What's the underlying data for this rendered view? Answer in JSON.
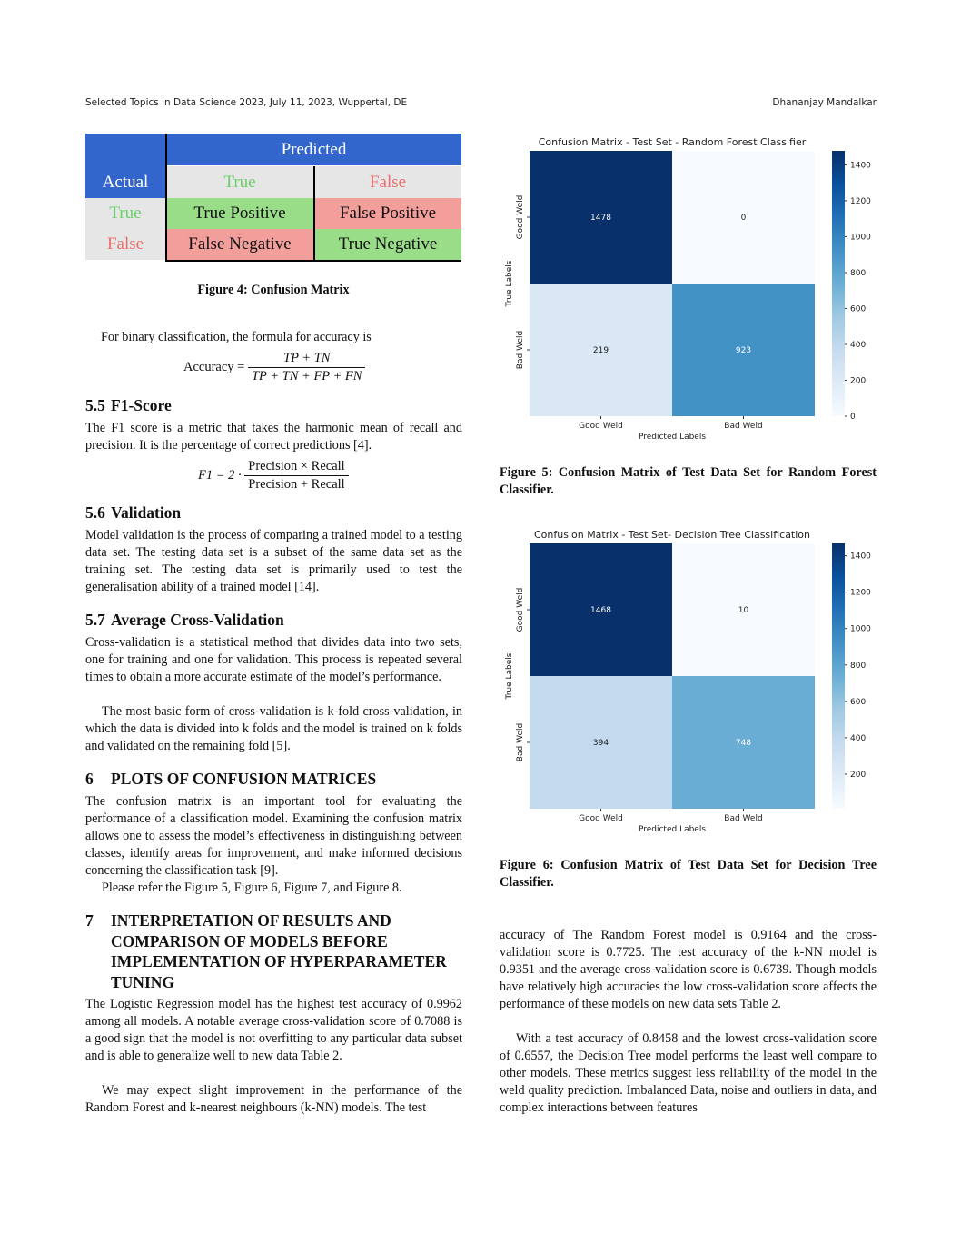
{
  "header": {
    "left": "Selected Topics in Data Science 2023, July 11, 2023, Wuppertal, DE",
    "right": "Dhananjay Mandalkar"
  },
  "confusion_table": {
    "predicted": "Predicted",
    "actual": "Actual",
    "true": "True",
    "false": "False",
    "tp": "True Positive",
    "fp": "False Positive",
    "fn": "False Negative",
    "tn": "True Negative",
    "caption": "Figure 4: Confusion Matrix"
  },
  "left": {
    "accuracy_intro": "For binary classification, the formula for accuracy is",
    "accuracy_lhs": "Accuracy =",
    "accuracy_num": "TP + TN",
    "accuracy_den": "TP + TN + FP + FN",
    "s55_num": "5.5",
    "s55_title": "F1-Score",
    "s55_text": "The F1 score is a metric that takes the harmonic mean of recall and precision. It is the percentage of correct predictions [4].",
    "f1_lhs": "F1 = 2 ·",
    "f1_num": "Precision × Recall",
    "f1_den": "Precision + Recall",
    "s56_num": "5.6",
    "s56_title": "Validation",
    "s56_text": "Model validation is the process of comparing a trained model to a testing data set. The testing data set is a subset of the same data set as the training set. The testing data set is primarily used to test the generalisation ability of a trained model [14].",
    "s57_num": "5.7",
    "s57_title": "Average Cross-Validation",
    "s57_text1": "Cross-validation is a statistical method that divides data into two sets, one for training and one for validation. This process is repeated several times to obtain a more accurate estimate of the model’s performance.",
    "s57_text2": "The most basic form of cross-validation is k-fold cross-validation, in which the data is divided into k folds and the model is trained on k folds and validated on the remaining fold [5].",
    "s6_num": "6",
    "s6_title": "PLOTS OF CONFUSION MATRICES",
    "s6_text1": "The confusion matrix is an important tool for evaluating the performance of a classification model. Examining the confusion matrix allows one to assess the model’s effectiveness in distinguishing between classes, identify areas for improvement, and make informed decisions concerning the classification task [9].",
    "s6_text2": "Please refer the Figure 5, Figure 6, Figure 7, and Figure 8.",
    "s7_num": "7",
    "s7_line1": "INTERPRETATION OF RESULTS AND",
    "s7_line2": "COMPARISON OF MODELS BEFORE",
    "s7_line3": "IMPLEMENTATION OF HYPERPARAMETER",
    "s7_line4": "TUNING",
    "s7_text1": "The Logistic Regression model has the highest test accuracy of 0.9962 among all models. A notable average cross-validation score of 0.7088 is a good sign that the model is not overfitting to any particular data subset and is able to generalize well to new data Table 2.",
    "s7_text2": "We may expect slight improvement in the performance of the Random Forest and k-nearest neighbours (k-NN) models. The test"
  },
  "right": {
    "fig5_caption": "Figure 5: Confusion Matrix of Test Data Set for Random Forest Classifier.",
    "fig6_caption": "Figure 6: Confusion Matrix of Test Data Set for Decision Tree Classifier.",
    "text1": "accuracy of The Random Forest model is 0.9164 and the cross-validation score is 0.7725. The test accuracy of the k-NN model is 0.9351 and the average cross-validation score is 0.6739. Though models have relatively high accuracies the low cross-validation score affects the performance of these models on new data sets Table 2.",
    "text2": "With a test accuracy of 0.8458 and the lowest cross-validation score of 0.6557, the Decision Tree model performs the least well compare to other models. These metrics suggest less reliability of the model in the weld quality prediction. Imbalanced Data, noise and outliers in data, and complex interactions between features"
  },
  "chart_data": [
    {
      "type": "heatmap",
      "title": "Confusion Matrix - Test Set - Random Forest Classifier",
      "xlabel": "Predicted Labels",
      "ylabel": "True Labels",
      "x_categories": [
        "Good Weld",
        "Bad Weld"
      ],
      "y_categories": [
        "Good Weld",
        "Bad Weld"
      ],
      "values": [
        [
          1478,
          0
        ],
        [
          219,
          923
        ]
      ],
      "colorbar_range": [
        0,
        1478
      ],
      "colorbar_ticks": [
        0,
        200,
        400,
        600,
        800,
        1000,
        1200,
        1400
      ],
      "colormap": "Blues"
    },
    {
      "type": "heatmap",
      "title": "Confusion Matrix - Test Set- Decision Tree Classification",
      "xlabel": "Predicted Labels",
      "ylabel": "True Labels",
      "x_categories": [
        "Good Weld",
        "Bad Weld"
      ],
      "y_categories": [
        "Good Weld",
        "Bad Weld"
      ],
      "values": [
        [
          1468,
          10
        ],
        [
          394,
          748
        ]
      ],
      "colorbar_range": [
        10,
        1468
      ],
      "colorbar_ticks": [
        200,
        400,
        600,
        800,
        1000,
        1200,
        1400
      ],
      "colormap": "Blues"
    }
  ],
  "colors": {
    "blue_header": "#3366cc",
    "green": "#99dd88",
    "red": "#f29e9b",
    "gray": "#e6e6e6",
    "green_text": "#6ccf6a",
    "red_text": "#ee6d6d"
  }
}
